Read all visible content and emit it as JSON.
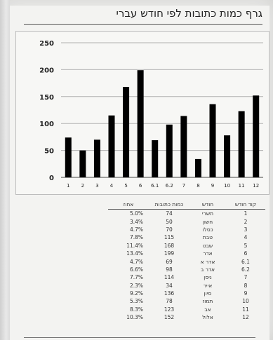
{
  "title": "גרף כמות כתובות לפי חודש עברי",
  "chart_data": {
    "type": "bar",
    "categories": [
      "1",
      "2",
      "3",
      "4",
      "5",
      "6",
      "6.1",
      "6.2",
      "7",
      "8",
      "9",
      "10",
      "11",
      "12"
    ],
    "values": [
      74,
      50,
      70,
      115,
      168,
      199,
      69,
      98,
      114,
      34,
      136,
      78,
      123,
      152
    ],
    "yticks": [
      0,
      50,
      100,
      150,
      200,
      250
    ],
    "ylim": [
      0,
      250
    ],
    "bar_color": "#000000",
    "grid": true,
    "grid_color": "#b0b0b0"
  },
  "table": {
    "headers": {
      "percent": "אחוז",
      "count": "כמות כתובות",
      "month": "חודש",
      "code": "קוד חודש"
    },
    "rows": [
      {
        "percent": "5.0%",
        "count": "74",
        "month": "תשרי",
        "code": "1"
      },
      {
        "percent": "3.4%",
        "count": "50",
        "month": "חשון",
        "code": "2"
      },
      {
        "percent": "4.7%",
        "count": "70",
        "month": "כסלו",
        "code": "3"
      },
      {
        "percent": "7.8%",
        "count": "115",
        "month": "טבת",
        "code": "4"
      },
      {
        "percent": "11.4%",
        "count": "168",
        "month": "שבט",
        "code": "5"
      },
      {
        "percent": "13.4%",
        "count": "199",
        "month": "אדר",
        "code": "6"
      },
      {
        "percent": "4.7%",
        "count": "69",
        "month": "אדר א",
        "code": "6.1"
      },
      {
        "percent": "6.6%",
        "count": "98",
        "month": "אדר ב",
        "code": "6.2"
      },
      {
        "percent": "7.7%",
        "count": "114",
        "month": "ניסן",
        "code": "7"
      },
      {
        "percent": "2.3%",
        "count": "34",
        "month": "אייר",
        "code": "8"
      },
      {
        "percent": "9.2%",
        "count": "136",
        "month": "סיון",
        "code": "9"
      },
      {
        "percent": "5.3%",
        "count": "78",
        "month": "תמוז",
        "code": "10"
      },
      {
        "percent": "8.3%",
        "count": "123",
        "month": "אב",
        "code": "11"
      },
      {
        "percent": "10.3%",
        "count": "152",
        "month": "אלול",
        "code": "12"
      }
    ]
  }
}
